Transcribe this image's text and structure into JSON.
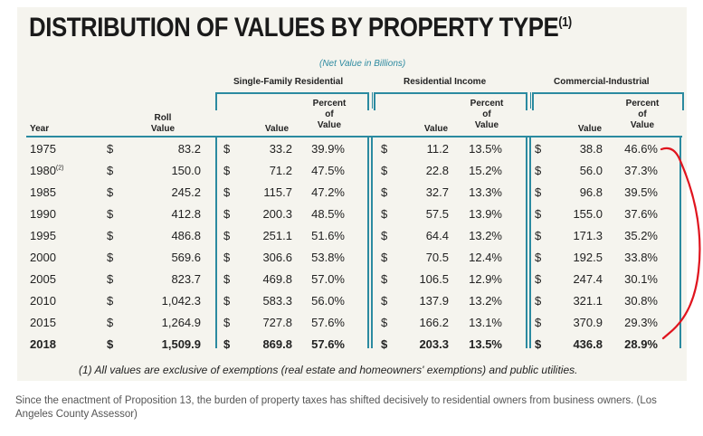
{
  "title": "DISTRIBUTION OF VALUES BY PROPERTY TYPE",
  "title_note": "(1)",
  "subtitle": "(Net Value in Billions)",
  "groups": {
    "sfr": "Single-Family Residential",
    "ri": "Residential Income",
    "ci": "Commercial-Industrial"
  },
  "columns": {
    "year": "Year",
    "roll_line1": "Roll",
    "roll_line2": "Value",
    "value": "Value",
    "pct_line1": "Percent",
    "pct_line2": "of",
    "pct_line3": "Value"
  },
  "rows": [
    {
      "year": "1975",
      "roll": "83.2",
      "sfr_v": "33.2",
      "sfr_p": "39.9%",
      "ri_v": "11.2",
      "ri_p": "13.5%",
      "ci_v": "38.8",
      "ci_p": "46.6%"
    },
    {
      "year": "1980",
      "year_note": "(2)",
      "roll": "150.0",
      "sfr_v": "71.2",
      "sfr_p": "47.5%",
      "ri_v": "22.8",
      "ri_p": "15.2%",
      "ci_v": "56.0",
      "ci_p": "37.3%"
    },
    {
      "year": "1985",
      "roll": "245.2",
      "sfr_v": "115.7",
      "sfr_p": "47.2%",
      "ri_v": "32.7",
      "ri_p": "13.3%",
      "ci_v": "96.8",
      "ci_p": "39.5%"
    },
    {
      "year": "1990",
      "roll": "412.8",
      "sfr_v": "200.3",
      "sfr_p": "48.5%",
      "ri_v": "57.5",
      "ri_p": "13.9%",
      "ci_v": "155.0",
      "ci_p": "37.6%"
    },
    {
      "year": "1995",
      "roll": "486.8",
      "sfr_v": "251.1",
      "sfr_p": "51.6%",
      "ri_v": "64.4",
      "ri_p": "13.2%",
      "ci_v": "171.3",
      "ci_p": "35.2%"
    },
    {
      "year": "2000",
      "roll": "569.6",
      "sfr_v": "306.6",
      "sfr_p": "53.8%",
      "ri_v": "70.5",
      "ri_p": "12.4%",
      "ci_v": "192.5",
      "ci_p": "33.8%"
    },
    {
      "year": "2005",
      "roll": "823.7",
      "sfr_v": "469.8",
      "sfr_p": "57.0%",
      "ri_v": "106.5",
      "ri_p": "12.9%",
      "ci_v": "247.4",
      "ci_p": "30.1%"
    },
    {
      "year": "2010",
      "roll": "1,042.3",
      "sfr_v": "583.3",
      "sfr_p": "56.0%",
      "ri_v": "137.9",
      "ri_p": "13.2%",
      "ci_v": "321.1",
      "ci_p": "30.8%"
    },
    {
      "year": "2015",
      "roll": "1,264.9",
      "sfr_v": "727.8",
      "sfr_p": "57.6%",
      "ri_v": "166.2",
      "ri_p": "13.1%",
      "ci_v": "370.9",
      "ci_p": "29.3%"
    },
    {
      "year": "2018",
      "roll": "1,509.9",
      "sfr_v": "869.8",
      "sfr_p": "57.6%",
      "ri_v": "203.3",
      "ri_p": "13.5%",
      "ci_v": "436.8",
      "ci_p": "28.9%",
      "bold": true
    }
  ],
  "currency": "$",
  "footnote": "(1) All values are exclusive of exemptions (real estate and homeowners' exemptions) and public utilities.",
  "caption": "Since the enactment of Proposition 13, the burden of property taxes has shifted decisively to residential owners from business owners. (Los Angeles County Assessor)",
  "colors": {
    "accent": "#2b8aa0",
    "annotation": "#e0141e",
    "panel": "#f5f4ee"
  }
}
